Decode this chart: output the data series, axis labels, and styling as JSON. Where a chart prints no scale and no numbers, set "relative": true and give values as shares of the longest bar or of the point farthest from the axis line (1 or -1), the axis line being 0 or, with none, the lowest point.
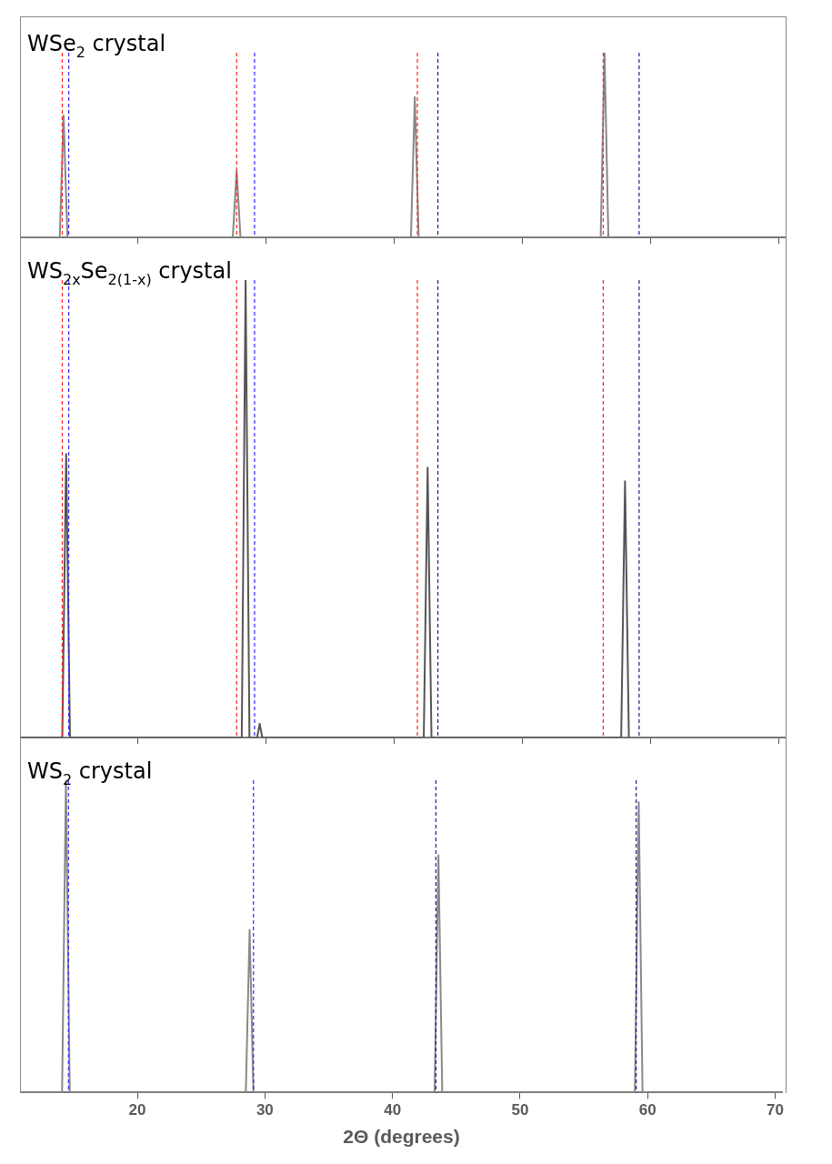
{
  "chart_data": [
    {
      "type": "line",
      "title": "WSe$_{2}$ crystal",
      "relative": true,
      "xlim": [
        10.8,
        70.6
      ],
      "xticks": [
        20,
        30,
        40,
        50,
        60,
        70
      ],
      "tick_labels": false,
      "grid": false,
      "legend": false,
      "marker": "none",
      "series": [
        {
          "color": "#888888",
          "x": [
            10.8,
            13.9,
            14.2,
            14.5,
            27.4,
            27.7,
            28.0,
            41.3,
            41.6,
            41.9,
            56.1,
            56.4,
            56.7
          ],
          "values": [
            0,
            0,
            0.66,
            0,
            0,
            0.36,
            0,
            0,
            0.76,
            0,
            0,
            1,
            0
          ]
        }
      ],
      "ref_lines": [
        {
          "axis": "x",
          "value": 14.1,
          "color": "#ff2020",
          "line_style": "dashed"
        },
        {
          "axis": "x",
          "value": 27.7,
          "color": "#ff2020",
          "line_style": "dashed"
        },
        {
          "axis": "x",
          "value": 41.8,
          "color": "#ff2020",
          "line_style": "dashed"
        },
        {
          "axis": "x",
          "value": 56.3,
          "color": "#ff2020",
          "line_style": "dashed"
        },
        {
          "axis": "x",
          "value": 14.6,
          "color": "#2a2aff",
          "line_style": "dashed"
        },
        {
          "axis": "x",
          "value": 29.1,
          "color": "#2a2aff",
          "line_style": "dashed"
        },
        {
          "axis": "x",
          "value": 43.4,
          "color": "#1c1c90",
          "line_style": "dashed"
        },
        {
          "axis": "x",
          "value": 59.1,
          "color": "#1c1c90",
          "line_style": "dashed"
        }
      ]
    },
    {
      "type": "line",
      "title": "WS$_{2x}$Se$_{2(1-x)}$ crystal",
      "relative": true,
      "xlim": [
        10.8,
        70.6
      ],
      "xticks": [
        20,
        30,
        40,
        50,
        60,
        70
      ],
      "tick_labels": false,
      "grid": false,
      "legend": false,
      "marker": "none",
      "series": [
        {
          "color": "#555555",
          "x": [
            10.8,
            14.1,
            14.4,
            14.7,
            28.1,
            28.4,
            28.7,
            29.3,
            29.5,
            29.7,
            42.3,
            42.6,
            42.9,
            57.7,
            58.0,
            58.3
          ],
          "values": [
            0,
            0,
            0.62,
            0,
            0,
            1,
            0,
            0,
            0.03,
            0,
            0,
            0.59,
            0,
            0,
            0.56,
            0
          ]
        }
      ],
      "ref_lines": [
        {
          "axis": "x",
          "value": 14.1,
          "color": "#ff2020",
          "line_style": "dashed"
        },
        {
          "axis": "x",
          "value": 27.7,
          "color": "#ff2020",
          "line_style": "dashed"
        },
        {
          "axis": "x",
          "value": 41.8,
          "color": "#ff2020",
          "line_style": "dashed"
        },
        {
          "axis": "x",
          "value": 56.3,
          "color": "#ff2020",
          "line_style": "dashed"
        },
        {
          "axis": "x",
          "value": 14.6,
          "color": "#2a2aff",
          "line_style": "dashed"
        },
        {
          "axis": "x",
          "value": 29.1,
          "color": "#2a2aff",
          "line_style": "dashed"
        },
        {
          "axis": "x",
          "value": 43.4,
          "color": "#1c1c90",
          "line_style": "dashed"
        },
        {
          "axis": "x",
          "value": 59.1,
          "color": "#1c1c90",
          "line_style": "dashed"
        }
      ]
    },
    {
      "type": "line",
      "title": "WS$_{2}$ crystal",
      "xlabel": "2Θ (degrees)",
      "relative": true,
      "xlim": [
        10.8,
        70.6
      ],
      "xticks": [
        20,
        30,
        40,
        50,
        60,
        70
      ],
      "tick_labels": "x",
      "grid": false,
      "legend": false,
      "marker": "none",
      "series": [
        {
          "color": "#888888",
          "x": [
            10.8,
            14.1,
            14.4,
            14.7,
            28.5,
            28.8,
            29.1,
            43.3,
            43.6,
            43.9,
            59.0,
            59.3,
            59.6,
            70.6
          ],
          "values": [
            0,
            0,
            1,
            0,
            0,
            0.52,
            0,
            0,
            0.76,
            0,
            0,
            0.93,
            0,
            0
          ]
        }
      ],
      "ref_lines": [
        {
          "axis": "x",
          "value": 14.6,
          "color": "#2a2aff",
          "line_style": "dashed"
        },
        {
          "axis": "x",
          "value": 29.1,
          "color": "#2a2aff",
          "line_style": "dashed"
        },
        {
          "axis": "x",
          "value": 43.4,
          "color": "#1c1c90",
          "line_style": "dashed"
        },
        {
          "axis": "x",
          "value": 59.1,
          "color": "#1c1c90",
          "line_style": "dashed"
        }
      ]
    }
  ]
}
